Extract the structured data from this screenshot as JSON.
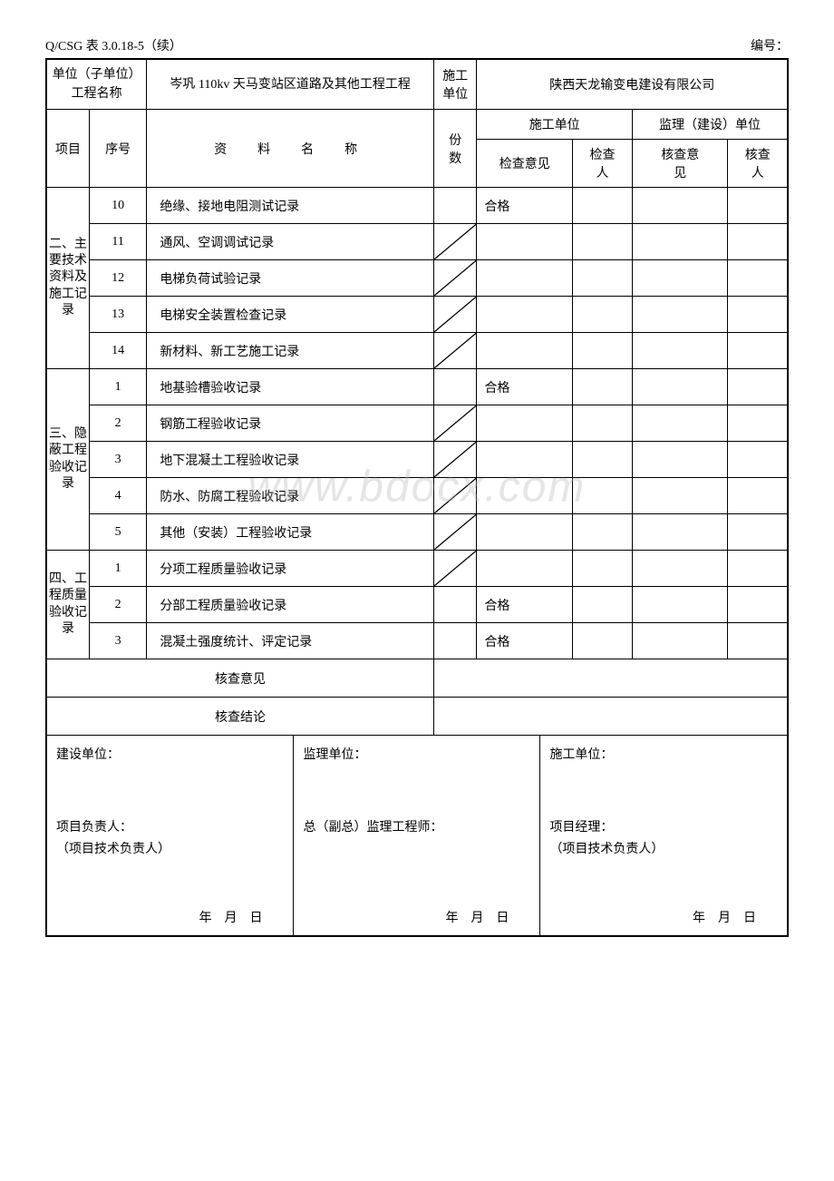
{
  "header": {
    "formCode": "Q/CSG 表 3.0.18-5（续）",
    "numberLabel": "编号："
  },
  "top": {
    "unitNameLabel": "单位（子单位）\n工程名称",
    "unitNameValue": "岑巩 110kv 天马变站区道路及其他工程工程",
    "constructorLabel": "施工单位",
    "constructorValue": "陕西天龙输变电建设有限公司"
  },
  "columns": {
    "project": "项目",
    "seq": "序号",
    "materialName": "资　料　名　称",
    "copies": "份数",
    "constructionUnit": "施工单位",
    "supervisionUnit": "监理（建设）单位",
    "checkOpinion": "检查意见",
    "checker": "检查人",
    "reviewOpinion": "核查意见",
    "reviewer": "核查人"
  },
  "sections": [
    {
      "label": "二、主要技术资料及施工记录",
      "rows": [
        {
          "seq": "10",
          "name": "绝缘、接地电阻测试记录",
          "opinion": "合格",
          "diag": false
        },
        {
          "seq": "11",
          "name": "通风、空调调试记录",
          "opinion": "",
          "diag": true
        },
        {
          "seq": "12",
          "name": "电梯负荷试验记录",
          "opinion": "",
          "diag": true
        },
        {
          "seq": "13",
          "name": "电梯安全装置检查记录",
          "opinion": "",
          "diag": true
        },
        {
          "seq": "14",
          "name": "新材料、新工艺施工记录",
          "opinion": "",
          "diag": true
        }
      ]
    },
    {
      "label": "三、隐蔽工程验收记录",
      "rows": [
        {
          "seq": "1",
          "name": "地基验槽验收记录",
          "opinion": "合格",
          "diag": false
        },
        {
          "seq": "2",
          "name": "钢筋工程验收记录",
          "opinion": "",
          "diag": true
        },
        {
          "seq": "3",
          "name": "地下混凝土工程验收记录",
          "opinion": "",
          "diag": true
        },
        {
          "seq": "4",
          "name": "防水、防腐工程验收记录",
          "opinion": "",
          "diag": true
        },
        {
          "seq": "5",
          "name": "其他（安装）工程验收记录",
          "opinion": "",
          "diag": true
        }
      ]
    },
    {
      "label": "四、工程质量验收记录",
      "rows": [
        {
          "seq": "1",
          "name": "分项工程质量验收记录",
          "opinion": "",
          "diag": true
        },
        {
          "seq": "2",
          "name": "分部工程质量验收记录",
          "opinion": "合格",
          "diag": false
        },
        {
          "seq": "3",
          "name": "混凝土强度统计、评定记录",
          "opinion": "合格",
          "diag": false
        }
      ]
    }
  ],
  "review": {
    "opinionLabel": "核查意见",
    "conclusionLabel": "核查结论"
  },
  "signatures": {
    "owner": {
      "unit": "建设单位：",
      "person1": "项目负责人：",
      "person2": "（项目技术负责人）"
    },
    "supervisor": {
      "unit": "监理单位：",
      "person1": "总（副总）监理工程师：",
      "person2": ""
    },
    "constructor": {
      "unit": "施工单位：",
      "person1": "项目经理：",
      "person2": "（项目技术负责人）"
    },
    "dateText": "年月日"
  },
  "watermark": "www.bdocx.com"
}
